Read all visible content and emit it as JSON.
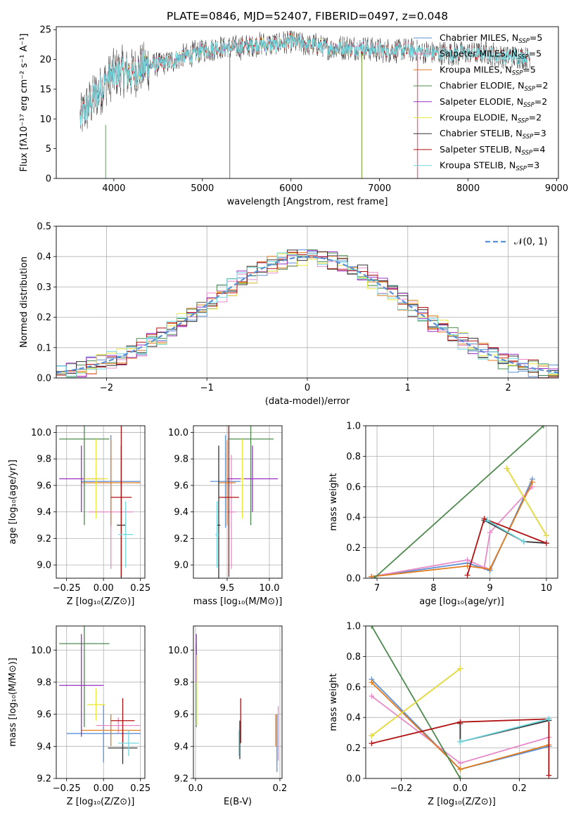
{
  "colors": {
    "chabrier_miles": "#5b8fd6",
    "salpeter_miles": "#e88ac8",
    "kroupa_miles": "#e07b1f",
    "chabrier_elodie": "#4e8a4e",
    "salpeter_elodie": "#9b2fc4",
    "kroupa_elodie": "#e8e83a",
    "chabrier_stelib": "#333333",
    "salpeter_stelib": "#b01010",
    "kroupa_stelib": "#6fd8de",
    "normal_curve": "#5b8fd6",
    "grid": "#b0b0b0"
  },
  "chart_data": [
    {
      "id": "spectrum",
      "type": "line",
      "title": "PLATE=0846, MJD=52407, FIBERID=0497, z=0.048",
      "xlabel": "wavelength [Angstrom, rest frame]",
      "ylabel": "Flux [fλ10⁻¹⁷ erg cm⁻² s⁻¹ A⁻¹]",
      "xlim": [
        3350,
        9020
      ],
      "ylim": [
        0,
        25.5
      ],
      "xticks": [
        "4000",
        "5000",
        "6000",
        "7000",
        "8000",
        "9000"
      ],
      "yticks": [
        "0",
        "5",
        "10",
        "15",
        "20",
        "25"
      ],
      "grid": false,
      "legend_position": "right",
      "legend": [
        {
          "label": "Chabrier MILES, N",
          "sub": "SSP",
          "suffix": "=5",
          "color_key": "chabrier_miles"
        },
        {
          "label": "Salpeter MILES, N",
          "sub": "SSP",
          "suffix": "=5",
          "color_key": "salpeter_miles"
        },
        {
          "label": "Kroupa MILES, N",
          "sub": "SSP",
          "suffix": "=5",
          "color_key": "kroupa_miles"
        },
        {
          "label": "Chabrier ELODIE, N",
          "sub": "SSP",
          "suffix": "=2",
          "color_key": "chabrier_elodie"
        },
        {
          "label": "Salpeter ELODIE, N",
          "sub": "SSP",
          "suffix": "=2",
          "color_key": "salpeter_elodie"
        },
        {
          "label": "Kroupa ELODIE, N",
          "sub": "SSP",
          "suffix": "=2",
          "color_key": "kroupa_elodie"
        },
        {
          "label": "Chabrier STELIB, N",
          "sub": "SSP",
          "suffix": "=3",
          "color_key": "chabrier_stelib"
        },
        {
          "label": "Salpeter STELIB, N",
          "sub": "SSP",
          "suffix": "=4",
          "color_key": "salpeter_stelib"
        },
        {
          "label": "Kroupa STELIB, N",
          "sub": "SSP",
          "suffix": "=3",
          "color_key": "kroupa_stelib"
        }
      ],
      "continuum": {
        "x": [
          3620,
          3700,
          3800,
          3900,
          4000,
          4100,
          4200,
          4300,
          4400,
          4600,
          4800,
          5000,
          5200,
          5400,
          5600,
          5800,
          6000,
          6200,
          6400,
          6600,
          6800,
          7000,
          7200,
          7400,
          7600,
          7800,
          8000,
          8200,
          8400,
          8600,
          8800
        ],
        "y": [
          10,
          12,
          14,
          16,
          17.5,
          18,
          17.5,
          18.5,
          19,
          19.5,
          20.5,
          21.5,
          22,
          22,
          22.5,
          22.5,
          23,
          22.5,
          22,
          22,
          22,
          21.5,
          21.5,
          21.5,
          21,
          21,
          21,
          21,
          20.5,
          20.5,
          20
        ]
      },
      "model_ranges": {
        "miles": [
          3620,
          7400
        ],
        "elodie": [
          3900,
          6800
        ],
        "stelib": [
          3620,
          8700
        ]
      },
      "spikes_x": [
        3900,
        5310,
        6800,
        7430
      ]
    },
    {
      "id": "residuals",
      "type": "histogram",
      "xlabel": "(data-model)/error",
      "ylabel": "Normed distribution",
      "xlim": [
        -2.5,
        2.5
      ],
      "ylim": [
        0,
        0.5
      ],
      "xticks": [
        "−2",
        "−1",
        "0",
        "1",
        "2"
      ],
      "yticks": [
        "0.0",
        "0.1",
        "0.2",
        "0.3",
        "0.4",
        "0.5"
      ],
      "grid": true,
      "legend_position": "top-right",
      "curve_label": "𝒩(0, 1)",
      "bin_width": 0.1,
      "envelope": {
        "amplitude": 0.399,
        "sigma": 1.0
      }
    },
    {
      "id": "age_vs_z",
      "type": "errorbar",
      "xlabel": "Z [log₁₀(Z/Z⊙)]",
      "ylabel": "age  [log₁₀(age/yr)]",
      "xlim": [
        -0.32,
        0.28
      ],
      "ylim": [
        8.9,
        10.05
      ],
      "xticks": [
        {
          "v": -0.25,
          "t": "−0.25"
        },
        {
          "v": 0,
          "t": "0.00"
        },
        {
          "v": 0.25,
          "t": "0.25"
        }
      ],
      "yticks": [
        {
          "v": 9.0,
          "t": "9.0"
        },
        {
          "v": 9.2,
          "t": "9.2"
        },
        {
          "v": 9.4,
          "t": "9.4"
        },
        {
          "v": 9.6,
          "t": "9.6"
        },
        {
          "v": 9.8,
          "t": "9.8"
        },
        {
          "v": 10.0,
          "t": "10.0"
        }
      ],
      "points": [
        {
          "series": "chabrier_miles",
          "x": 0.05,
          "xerr": 0.2,
          "y": 9.63,
          "yerr": 0.35
        },
        {
          "series": "salpeter_miles",
          "x": 0.05,
          "xerr": 0.15,
          "y": 9.4,
          "yerr": 0.43
        },
        {
          "series": "kroupa_miles",
          "x": 0.05,
          "xerr": 0.2,
          "y": 9.62,
          "yerr": 0.32
        },
        {
          "series": "chabrier_elodie",
          "x": -0.13,
          "xerr": 0.17,
          "y": 9.95,
          "yerr": 0.65
        },
        {
          "series": "salpeter_elodie",
          "x": -0.15,
          "xerr": 0.15,
          "y": 9.65,
          "yerr": 0.25
        },
        {
          "series": "kroupa_elodie",
          "x": -0.05,
          "xerr": 0.08,
          "y": 9.65,
          "yerr": 0.3
        },
        {
          "series": "chabrier_stelib",
          "x": 0.12,
          "xerr": 0.03,
          "y": 9.3,
          "yerr": 0.6
        },
        {
          "series": "salpeter_stelib",
          "x": 0.12,
          "xerr": 0.07,
          "y": 9.51,
          "yerr": 0.6
        },
        {
          "series": "kroupa_stelib",
          "x": 0.15,
          "xerr": 0.05,
          "y": 9.23,
          "yerr": 0.25
        }
      ]
    },
    {
      "id": "age_vs_mass",
      "type": "errorbar",
      "xlabel": "mass [log₁₀(M/M⊙)]",
      "ylabel": "",
      "xlim": [
        9.1,
        10.15
      ],
      "ylim": [
        8.9,
        10.05
      ],
      "xticks": [
        {
          "v": 9.5,
          "t": "9.5"
        },
        {
          "v": 10.0,
          "t": "10.0"
        }
      ],
      "yticks": [
        {
          "v": 9.0,
          "t": "9.0"
        },
        {
          "v": 9.2,
          "t": "9.2"
        },
        {
          "v": 9.4,
          "t": "9.4"
        },
        {
          "v": 9.6,
          "t": "9.6"
        },
        {
          "v": 9.8,
          "t": "9.8"
        },
        {
          "v": 10.0,
          "t": "10.0"
        }
      ],
      "points": [
        {
          "series": "chabrier_miles",
          "x": 9.48,
          "xerr": 0.18,
          "y": 9.63,
          "yerr": 0.35
        },
        {
          "series": "salpeter_miles",
          "x": 9.55,
          "xerr": 0.05,
          "y": 9.4,
          "yerr": 0.43
        },
        {
          "series": "kroupa_miles",
          "x": 9.5,
          "xerr": 0.1,
          "y": 9.62,
          "yerr": 0.32
        },
        {
          "series": "chabrier_elodie",
          "x": 9.78,
          "xerr": 0.27,
          "y": 9.95,
          "yerr": 0.65
        },
        {
          "series": "salpeter_elodie",
          "x": 9.8,
          "xerr": 0.3,
          "y": 9.65,
          "yerr": 0.25
        },
        {
          "series": "kroupa_elodie",
          "x": 9.68,
          "xerr": 0.02,
          "y": 9.65,
          "yerr": 0.3
        },
        {
          "series": "chabrier_stelib",
          "x": 9.4,
          "xerr": 0.02,
          "y": 9.3,
          "yerr": 0.6
        },
        {
          "series": "salpeter_stelib",
          "x": 9.52,
          "xerr": 0.12,
          "y": 9.51,
          "yerr": 0.6
        },
        {
          "series": "kroupa_stelib",
          "x": 9.38,
          "xerr": 0.02,
          "y": 9.23,
          "yerr": 0.25
        }
      ]
    },
    {
      "id": "weight_vs_age",
      "type": "line",
      "xlabel": "age  [log₁₀(age/yr)]",
      "ylabel": "mass weight",
      "xlim": [
        6.8,
        10.2
      ],
      "ylim": [
        0,
        1.0
      ],
      "xticks": [
        {
          "v": 7,
          "t": "7"
        },
        {
          "v": 8,
          "t": "8"
        },
        {
          "v": 9,
          "t": "9"
        },
        {
          "v": 10,
          "t": "10"
        }
      ],
      "yticks": [
        {
          "v": 0,
          "t": "0.0"
        },
        {
          "v": 0.2,
          "t": "0.2"
        },
        {
          "v": 0.4,
          "t": "0.4"
        },
        {
          "v": 0.6,
          "t": "0.6"
        },
        {
          "v": 0.8,
          "t": "0.8"
        },
        {
          "v": 1.0,
          "t": "1.0"
        }
      ],
      "series": [
        {
          "series": "chabrier_miles",
          "x": [
            6.9,
            8.6,
            9.0,
            9.75
          ],
          "y": [
            0.01,
            0.1,
            0.05,
            0.65
          ]
        },
        {
          "series": "salpeter_miles",
          "x": [
            6.9,
            8.6,
            8.9,
            9.0,
            9.75
          ],
          "y": [
            0.01,
            0.12,
            0.07,
            0.3,
            0.6
          ]
        },
        {
          "series": "kroupa_miles",
          "x": [
            6.9,
            8.6,
            9.0,
            9.75
          ],
          "y": [
            0.01,
            0.08,
            0.06,
            0.63
          ]
        },
        {
          "series": "chabrier_elodie",
          "x": [
            6.95,
            9.95
          ],
          "y": [
            0.0,
            1.0
          ]
        },
        {
          "series": "salpeter_elodie",
          "x": [
            9.3,
            10.0
          ],
          "y": [
            0.72,
            0.28
          ]
        },
        {
          "series": "kroupa_elodie",
          "x": [
            9.3,
            10.0
          ],
          "y": [
            0.72,
            0.28
          ]
        },
        {
          "series": "chabrier_stelib",
          "x": [
            8.9,
            9.6,
            10.0
          ],
          "y": [
            0.38,
            0.24,
            0.23
          ]
        },
        {
          "series": "salpeter_stelib",
          "x": [
            8.6,
            8.9,
            10.0
          ],
          "y": [
            0.02,
            0.39,
            0.23
          ]
        },
        {
          "series": "kroupa_stelib",
          "x": [
            8.95,
            9.6
          ],
          "y": [
            0.38,
            0.24
          ]
        }
      ]
    },
    {
      "id": "mass_vs_z",
      "type": "errorbar",
      "xlabel": "Z [log₁₀(Z/Z⊙)]",
      "ylabel": "mass [log₁₀(M/M⊙)]",
      "xlim": [
        -0.32,
        0.28
      ],
      "ylim": [
        9.2,
        10.15
      ],
      "xticks": [
        {
          "v": -0.25,
          "t": "−0.25"
        },
        {
          "v": 0,
          "t": "0.00"
        },
        {
          "v": 0.25,
          "t": "0.25"
        }
      ],
      "yticks": [
        {
          "v": 9.2,
          "t": "9.2"
        },
        {
          "v": 9.4,
          "t": "9.4"
        },
        {
          "v": 9.6,
          "t": "9.6"
        },
        {
          "v": 9.8,
          "t": "9.8"
        },
        {
          "v": 10.0,
          "t": "10.0"
        }
      ],
      "points": [
        {
          "series": "chabrier_miles",
          "x": 0.0,
          "xerr": 0.25,
          "y": 9.48,
          "yerr": 0.18
        },
        {
          "series": "salpeter_miles",
          "x": 0.1,
          "xerr": 0.15,
          "y": 9.53,
          "yerr": 0.05
        },
        {
          "series": "kroupa_miles",
          "x": 0.05,
          "xerr": 0.2,
          "y": 9.5,
          "yerr": 0.1
        },
        {
          "series": "chabrier_elodie",
          "x": -0.13,
          "xerr": 0.17,
          "y": 10.04,
          "yerr": 0.52
        },
        {
          "series": "salpeter_elodie",
          "x": -0.15,
          "xerr": 0.15,
          "y": 9.78,
          "yerr": 0.32
        },
        {
          "series": "kroupa_elodie",
          "x": -0.05,
          "xerr": 0.06,
          "y": 9.66,
          "yerr": 0.1
        },
        {
          "series": "chabrier_stelib",
          "x": 0.13,
          "xerr": 0.1,
          "y": 9.39,
          "yerr": 0.1
        },
        {
          "series": "salpeter_stelib",
          "x": 0.13,
          "xerr": 0.08,
          "y": 9.56,
          "yerr": 0.14
        },
        {
          "series": "kroupa_stelib",
          "x": 0.17,
          "xerr": 0.07,
          "y": 9.42,
          "yerr": 0.08
        }
      ]
    },
    {
      "id": "mass_vs_ebv",
      "type": "errorbar",
      "xlabel": "E(B-V)",
      "ylabel": "",
      "xlim": [
        -0.005,
        0.205
      ],
      "ylim": [
        9.2,
        10.15
      ],
      "xticks": [
        {
          "v": 0,
          "t": "0.0"
        },
        {
          "v": 0.2,
          "t": "0.2"
        }
      ],
      "yticks": [
        {
          "v": 9.2,
          "t": "9.2"
        },
        {
          "v": 9.4,
          "t": "9.4"
        },
        {
          "v": 9.6,
          "t": "9.6"
        },
        {
          "v": 9.8,
          "t": "9.8"
        },
        {
          "v": 10.0,
          "t": "10.0"
        }
      ],
      "points": [
        {
          "series": "chabrier_elodie",
          "x": 0.002,
          "xerr": 0,
          "y": 9.78,
          "yerr": 0.26
        },
        {
          "series": "salpeter_elodie",
          "x": 0.002,
          "xerr": 0,
          "y": 9.95,
          "yerr": 0.15
        },
        {
          "series": "kroupa_elodie",
          "x": 0.003,
          "xerr": 0,
          "y": 9.75,
          "yerr": 0.22
        },
        {
          "series": "chabrier_stelib",
          "x": 0.105,
          "xerr": 0,
          "y": 9.44,
          "yerr": 0.12
        },
        {
          "series": "salpeter_stelib",
          "x": 0.107,
          "xerr": 0,
          "y": 9.56,
          "yerr": 0.14
        },
        {
          "series": "kroupa_stelib",
          "x": 0.103,
          "xerr": 0,
          "y": 9.42,
          "yerr": 0.08
        },
        {
          "series": "chabrier_miles",
          "x": 0.193,
          "xerr": 0,
          "y": 9.42,
          "yerr": 0.18
        },
        {
          "series": "salpeter_miles",
          "x": 0.196,
          "xerr": 0,
          "y": 9.48,
          "yerr": 0.17
        },
        {
          "series": "kroupa_miles",
          "x": 0.19,
          "xerr": 0,
          "y": 9.5,
          "yerr": 0.1
        }
      ]
    },
    {
      "id": "weight_vs_z",
      "type": "line",
      "xlabel": "Z [log₁₀(Z/Z⊙)]",
      "ylabel": "mass weight",
      "xlim": [
        -0.32,
        0.33
      ],
      "ylim": [
        0,
        1.0
      ],
      "xticks": [
        {
          "v": -0.2,
          "t": "−0.2"
        },
        {
          "v": 0,
          "t": "0.0"
        },
        {
          "v": 0.2,
          "t": "0.2"
        }
      ],
      "yticks": [
        {
          "v": 0,
          "t": "0.0"
        },
        {
          "v": 0.2,
          "t": "0.2"
        },
        {
          "v": 0.4,
          "t": "0.4"
        },
        {
          "v": 0.6,
          "t": "0.6"
        },
        {
          "v": 0.8,
          "t": "0.8"
        },
        {
          "v": 1.0,
          "t": "1.0"
        }
      ],
      "series": [
        {
          "series": "chabrier_miles",
          "x": [
            -0.3,
            0.0,
            0.3
          ],
          "y": [
            0.65,
            0.06,
            0.21
          ]
        },
        {
          "series": "salpeter_miles",
          "x": [
            -0.3,
            0.0,
            0.3
          ],
          "y": [
            0.54,
            0.1,
            0.27
          ]
        },
        {
          "series": "kroupa_miles",
          "x": [
            -0.3,
            0.0,
            0.3
          ],
          "y": [
            0.63,
            0.06,
            0.22
          ]
        },
        {
          "series": "chabrier_elodie",
          "x": [
            -0.3,
            0.0
          ],
          "y": [
            1.0,
            0.0
          ]
        },
        {
          "series": "salpeter_elodie",
          "x": [
            -0.3,
            0.0
          ],
          "y": [
            0.28,
            0.72
          ]
        },
        {
          "series": "kroupa_elodie",
          "x": [
            -0.3,
            0.0
          ],
          "y": [
            0.28,
            0.72
          ]
        },
        {
          "series": "chabrier_stelib",
          "x": [
            0.0,
            0.0,
            0.3
          ],
          "y": [
            0.36,
            0.24,
            0.38
          ]
        },
        {
          "series": "salpeter_stelib",
          "x": [
            -0.3,
            0.0,
            0.3,
            0.3
          ],
          "y": [
            0.23,
            0.37,
            0.39,
            0.02
          ]
        },
        {
          "series": "kroupa_stelib",
          "x": [
            0.0,
            0.3
          ],
          "y": [
            0.24,
            0.39
          ]
        }
      ]
    }
  ]
}
